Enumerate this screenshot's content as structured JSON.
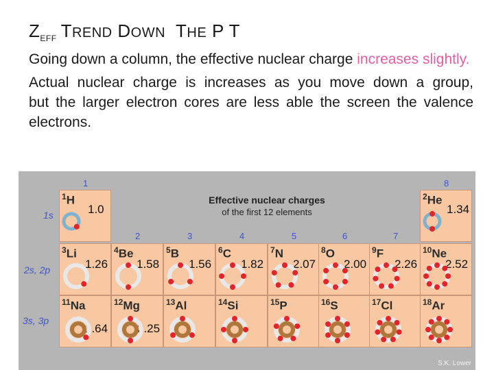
{
  "slide": {
    "title": {
      "z": "Z",
      "eff": "EFF",
      "trend": "T",
      "trend_rest": "REND",
      "down": "D",
      "down_rest": "OWN",
      "the": "T",
      "the_rest": "HE",
      "tail": "P T"
    },
    "para1_pre": "Going down a column, the effective nuclear charge ",
    "para1_hl": "increases slightly.",
    "para2": "Actual nuclear charge is increases as you move down a group, but the larger electron cores are less able the screen the valence electrons."
  },
  "figure": {
    "heading_line1": "Effective nuclear charges",
    "heading_line2": "of the first 12 elements",
    "groups": [
      "1",
      "2",
      "3",
      "4",
      "5",
      "6",
      "7",
      "8"
    ],
    "shells": [
      "1s",
      "2s, 2p",
      "3s, 3p"
    ],
    "credit": "S.K. Lower",
    "colors": {
      "cell": "#f7c8a2",
      "electron": "#e3242b",
      "ring": "#7fb2cf",
      "core_ring": "#b0773d",
      "label_blue": "#3b56c8",
      "highlight": "#e05fa3"
    },
    "elements": [
      {
        "z": "1",
        "symbol": "H",
        "zeff": "1.0",
        "electrons": 1
      },
      {
        "z": "2",
        "symbol": "He",
        "zeff": "1.34",
        "electrons": 2
      },
      {
        "z": "3",
        "symbol": "Li",
        "zeff": "1.26",
        "electrons": 1
      },
      {
        "z": "4",
        "symbol": "Be",
        "zeff": "1.58",
        "electrons": 2
      },
      {
        "z": "5",
        "symbol": "B",
        "zeff": "1.56",
        "electrons": 3
      },
      {
        "z": "6",
        "symbol": "C",
        "zeff": "1.82",
        "electrons": 4
      },
      {
        "z": "7",
        "symbol": "N",
        "zeff": "2.07",
        "electrons": 5
      },
      {
        "z": "8",
        "symbol": "O",
        "zeff": "2.00",
        "electrons": 6
      },
      {
        "z": "9",
        "symbol": "F",
        "zeff": "2.26",
        "electrons": 7
      },
      {
        "z": "10",
        "symbol": "Ne",
        "zeff": "2.52",
        "electrons": 8
      },
      {
        "z": "11",
        "symbol": "Na",
        "zeff": "1.64",
        "electrons": 1
      },
      {
        "z": "12",
        "symbol": "Mg",
        "zeff": "2.25",
        "electrons": 2
      },
      {
        "z": "13",
        "symbol": "Al",
        "zeff": "",
        "electrons": 3
      },
      {
        "z": "14",
        "symbol": "Si",
        "zeff": "",
        "electrons": 4
      },
      {
        "z": "15",
        "symbol": "P",
        "zeff": "",
        "electrons": 5
      },
      {
        "z": "16",
        "symbol": "S",
        "zeff": "",
        "electrons": 6
      },
      {
        "z": "17",
        "symbol": "Cl",
        "zeff": "",
        "electrons": 7
      },
      {
        "z": "18",
        "symbol": "Ar",
        "zeff": "",
        "electrons": 8
      }
    ]
  }
}
